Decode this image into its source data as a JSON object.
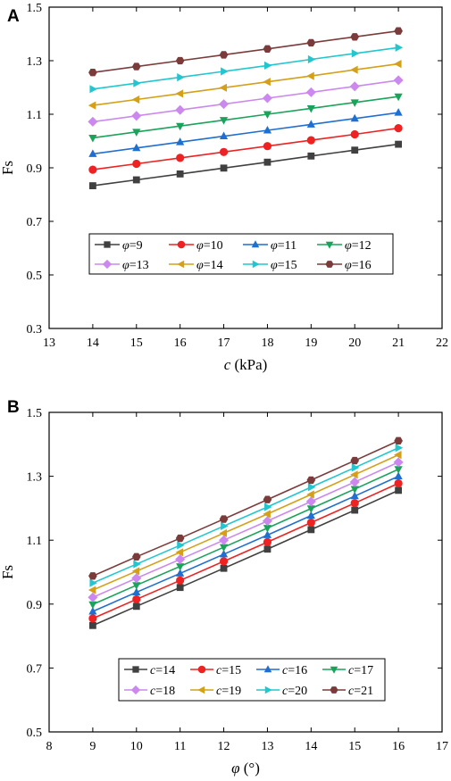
{
  "chart_data": [
    {
      "panel": "A",
      "type": "line",
      "xlabel_var": "c",
      "xlabel_unit": " (kPa)",
      "ylabel": "Fs",
      "xlim": [
        13,
        22
      ],
      "ylim": [
        0.3,
        1.5
      ],
      "xticks": [
        13,
        14,
        15,
        16,
        17,
        18,
        19,
        20,
        21,
        22
      ],
      "yticks": [
        0.3,
        0.5,
        0.7,
        0.9,
        1.1,
        1.3,
        1.5
      ],
      "x": [
        14,
        15,
        16,
        17,
        18,
        19,
        20,
        21
      ],
      "legend_var": "φ",
      "legend_position": "lower-left",
      "grid": false,
      "series": [
        {
          "name": "9",
          "color": "#404040",
          "marker": "square",
          "values": [
            0.833,
            0.855,
            0.877,
            0.899,
            0.921,
            0.944,
            0.966,
            0.988
          ]
        },
        {
          "name": "10",
          "color": "#ee2222",
          "marker": "circle",
          "values": [
            0.893,
            0.915,
            0.937,
            0.959,
            0.981,
            1.003,
            1.025,
            1.048
          ]
        },
        {
          "name": "11",
          "color": "#1f6fd1",
          "marker": "triangle-up",
          "values": [
            0.952,
            0.974,
            0.996,
            1.018,
            1.04,
            1.062,
            1.084,
            1.106
          ]
        },
        {
          "name": "12",
          "color": "#1aa35a",
          "marker": "triangle-down",
          "values": [
            1.012,
            1.034,
            1.056,
            1.078,
            1.1,
            1.122,
            1.144,
            1.166
          ]
        },
        {
          "name": "13",
          "color": "#cc88ee",
          "marker": "diamond",
          "values": [
            1.072,
            1.094,
            1.116,
            1.138,
            1.16,
            1.182,
            1.204,
            1.227
          ]
        },
        {
          "name": "14",
          "color": "#d4a017",
          "marker": "triangle-left",
          "values": [
            1.133,
            1.155,
            1.177,
            1.199,
            1.221,
            1.243,
            1.266,
            1.288
          ]
        },
        {
          "name": "15",
          "color": "#22c6cf",
          "marker": "triangle-right",
          "values": [
            1.194,
            1.216,
            1.238,
            1.26,
            1.282,
            1.305,
            1.327,
            1.349
          ]
        },
        {
          "name": "16",
          "color": "#7b3b3b",
          "marker": "hexagon",
          "values": [
            1.256,
            1.278,
            1.3,
            1.322,
            1.344,
            1.367,
            1.389,
            1.411
          ]
        }
      ]
    },
    {
      "panel": "B",
      "type": "line",
      "xlabel_var": "φ",
      "xlabel_unit": " (°)",
      "ylabel": "Fs",
      "xlim": [
        8,
        17
      ],
      "ylim": [
        0.5,
        1.5
      ],
      "xticks": [
        8,
        9,
        10,
        11,
        12,
        13,
        14,
        15,
        16,
        17
      ],
      "yticks": [
        0.5,
        0.7,
        0.9,
        1.1,
        1.3,
        1.5
      ],
      "x": [
        9,
        10,
        11,
        12,
        13,
        14,
        15,
        16
      ],
      "legend_var": "c",
      "legend_position": "lower-right",
      "grid": false,
      "series": [
        {
          "name": "14",
          "color": "#404040",
          "marker": "square",
          "values": [
            0.833,
            0.893,
            0.952,
            1.012,
            1.072,
            1.133,
            1.194,
            1.256
          ]
        },
        {
          "name": "15",
          "color": "#ee2222",
          "marker": "circle",
          "values": [
            0.855,
            0.915,
            0.974,
            1.034,
            1.094,
            1.155,
            1.216,
            1.278
          ]
        },
        {
          "name": "16",
          "color": "#1f6fd1",
          "marker": "triangle-up",
          "values": [
            0.877,
            0.937,
            0.996,
            1.056,
            1.116,
            1.177,
            1.238,
            1.3
          ]
        },
        {
          "name": "17",
          "color": "#1aa35a",
          "marker": "triangle-down",
          "values": [
            0.899,
            0.959,
            1.018,
            1.078,
            1.138,
            1.199,
            1.26,
            1.322
          ]
        },
        {
          "name": "18",
          "color": "#cc88ee",
          "marker": "diamond",
          "values": [
            0.921,
            0.981,
            1.04,
            1.1,
            1.16,
            1.221,
            1.282,
            1.344
          ]
        },
        {
          "name": "19",
          "color": "#d4a017",
          "marker": "triangle-left",
          "values": [
            0.944,
            1.003,
            1.062,
            1.122,
            1.182,
            1.243,
            1.305,
            1.367
          ]
        },
        {
          "name": "20",
          "color": "#22c6cf",
          "marker": "triangle-right",
          "values": [
            0.966,
            1.025,
            1.084,
            1.144,
            1.204,
            1.266,
            1.327,
            1.389
          ]
        },
        {
          "name": "21",
          "color": "#7b3b3b",
          "marker": "hexagon",
          "values": [
            0.988,
            1.048,
            1.106,
            1.166,
            1.227,
            1.288,
            1.349,
            1.411
          ]
        }
      ]
    }
  ]
}
